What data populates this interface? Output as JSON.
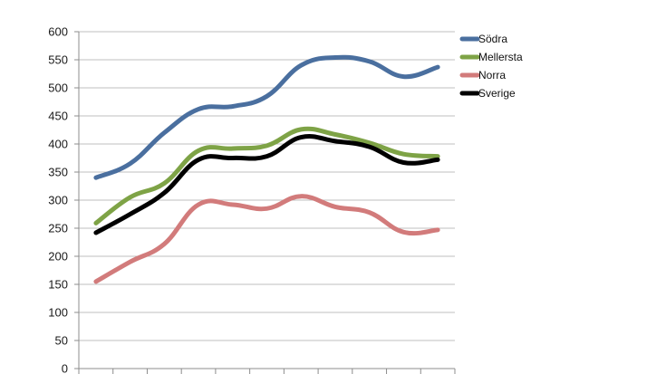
{
  "chart_data": {
    "type": "line",
    "title": "",
    "xlabel": "",
    "ylabel": "",
    "ylim": [
      0,
      600
    ],
    "y_ticks": [
      0,
      50,
      100,
      150,
      200,
      250,
      300,
      350,
      400,
      450,
      500,
      550,
      600
    ],
    "grid": "horizontal",
    "legend_position": "top-right",
    "smooth": true,
    "series": [
      {
        "name": "Södra",
        "color": "#4a6f9f",
        "values": [
          340,
          365,
          420,
          462,
          467,
          485,
          540,
          554,
          547,
          520,
          537
        ]
      },
      {
        "name": "Mellersta",
        "color": "#7ea346",
        "values": [
          259,
          305,
          330,
          388,
          392,
          397,
          426,
          417,
          402,
          382,
          378
        ]
      },
      {
        "name": "Norra",
        "color": "#d27b7b",
        "values": [
          155,
          190,
          222,
          292,
          292,
          285,
          307,
          288,
          278,
          243,
          247
        ]
      },
      {
        "name": "Sverige",
        "color": "#000000",
        "values": [
          242,
          275,
          313,
          372,
          375,
          378,
          412,
          405,
          395,
          367,
          372
        ]
      }
    ]
  }
}
